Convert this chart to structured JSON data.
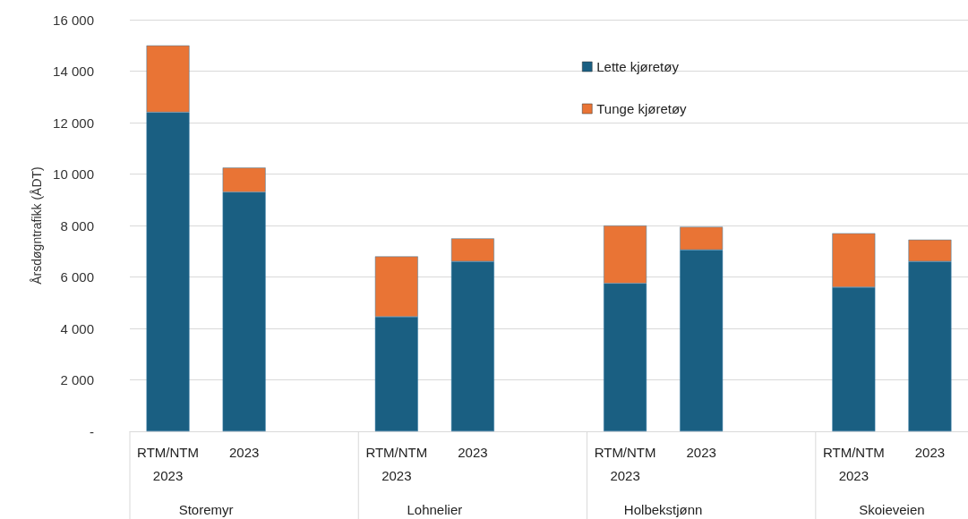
{
  "chart_data": {
    "type": "bar",
    "stacked": true,
    "ylabel": "Årsdøgntrafikk (ÅDT)",
    "categories": [
      "RTM/NTM\n2023",
      "2023",
      null,
      "RTM/NTM\n2023",
      "2023",
      null,
      "RTM/NTM\n2023",
      "2023",
      null,
      "RTM/NTM\n2023",
      "2023"
    ],
    "series": [
      {
        "name": "Lette kjøretøy",
        "color": "#1a5f82",
        "values": [
          12400,
          9300,
          null,
          4450,
          6600,
          null,
          5750,
          7050,
          null,
          5600,
          6600
        ]
      },
      {
        "name": "Tunge kjøretøy",
        "color": "#e97435",
        "values": [
          2600,
          950,
          null,
          2350,
          900,
          null,
          2250,
          900,
          null,
          2100,
          850
        ]
      }
    ],
    "annotations": [
      "Storemyr",
      "Lohnelier",
      "Holbekstjønn",
      "Skoieveien"
    ],
    "ylim": [
      0,
      16000
    ],
    "yticks": [
      {
        "value": 0,
        "label": "-"
      },
      {
        "value": 2000,
        "label": "2 000"
      },
      {
        "value": 4000,
        "label": "4 000"
      },
      {
        "value": 6000,
        "label": "6 000"
      },
      {
        "value": 8000,
        "label": "8 000"
      },
      {
        "value": 10000,
        "label": "10 000"
      },
      {
        "value": 12000,
        "label": "12 000"
      },
      {
        "value": 14000,
        "label": "14 000"
      },
      {
        "value": 16000,
        "label": "16 000"
      }
    ],
    "grid": "y",
    "legend": "top right"
  }
}
